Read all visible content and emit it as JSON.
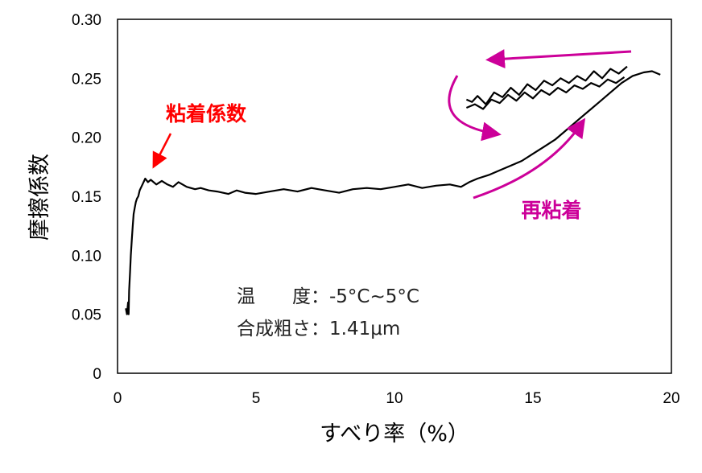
{
  "chart_data": {
    "type": "line",
    "title": "",
    "xlabel": "すべり率（%）",
    "ylabel": "摩擦係数",
    "xlim": [
      0,
      20
    ],
    "ylim": [
      0,
      0.3
    ],
    "x_ticks": [
      "0",
      "5",
      "10",
      "15",
      "20"
    ],
    "y_ticks": [
      "0",
      "0.05",
      "0.10",
      "0.15",
      "0.20",
      "0.25",
      "0.30"
    ],
    "grid": false,
    "legend": "none",
    "series": [
      {
        "color": "#000000",
        "x": [
          0.3,
          0.34,
          0.38,
          0.4,
          0.42,
          0.45,
          0.48,
          0.52,
          0.55,
          0.58,
          0.62,
          0.66,
          0.7,
          0.75,
          0.8,
          0.9,
          1.0,
          1.1,
          1.2,
          1.4,
          1.6,
          1.8,
          2.0,
          2.2,
          2.5,
          2.8,
          3.0,
          3.3,
          3.6,
          4.0,
          4.3,
          4.6,
          5.0,
          5.5,
          6.0,
          6.5,
          7.0,
          7.5,
          8.0,
          8.5,
          9.0,
          9.5,
          10.0,
          10.5,
          11.0,
          11.5,
          12.0,
          12.4,
          12.7,
          13.0,
          13.4,
          13.8,
          14.2,
          14.6,
          15.0,
          15.4,
          15.8,
          16.2,
          16.6,
          17.0,
          17.4,
          17.8,
          18.2,
          18.6,
          19.0,
          19.3,
          19.6
        ],
        "y": [
          0.055,
          0.05,
          0.06,
          0.05,
          0.07,
          0.085,
          0.1,
          0.115,
          0.125,
          0.135,
          0.14,
          0.145,
          0.148,
          0.15,
          0.155,
          0.16,
          0.165,
          0.162,
          0.164,
          0.16,
          0.163,
          0.16,
          0.158,
          0.162,
          0.158,
          0.156,
          0.157,
          0.155,
          0.154,
          0.152,
          0.155,
          0.153,
          0.152,
          0.154,
          0.156,
          0.154,
          0.157,
          0.155,
          0.153,
          0.156,
          0.157,
          0.156,
          0.158,
          0.16,
          0.157,
          0.159,
          0.16,
          0.158,
          0.162,
          0.165,
          0.168,
          0.172,
          0.176,
          0.18,
          0.186,
          0.192,
          0.198,
          0.206,
          0.214,
          0.222,
          0.23,
          0.238,
          0.246,
          0.252,
          0.255,
          0.256,
          0.253
        ]
      },
      {
        "color": "#000000",
        "x": [
          12.6,
          12.8,
          13.0,
          13.3,
          13.6,
          13.9,
          14.2,
          14.5,
          14.8,
          15.1,
          15.4,
          15.7,
          16.0,
          16.3,
          16.6,
          16.9,
          17.2,
          17.5,
          17.8,
          18.1,
          18.4
        ],
        "y": [
          0.232,
          0.23,
          0.235,
          0.228,
          0.238,
          0.234,
          0.242,
          0.236,
          0.245,
          0.24,
          0.248,
          0.244,
          0.25,
          0.246,
          0.252,
          0.248,
          0.256,
          0.25,
          0.258,
          0.254,
          0.26
        ]
      },
      {
        "color": "#000000",
        "x": [
          12.6,
          12.9,
          13.2,
          13.5,
          13.8,
          14.1,
          14.4,
          14.7,
          15.0,
          15.3,
          15.6,
          15.9,
          16.2,
          16.5,
          16.8,
          17.1,
          17.4,
          17.7,
          18.0,
          18.3
        ],
        "y": [
          0.225,
          0.228,
          0.224,
          0.232,
          0.229,
          0.236,
          0.231,
          0.238,
          0.233,
          0.24,
          0.236,
          0.242,
          0.238,
          0.244,
          0.241,
          0.246,
          0.243,
          0.249,
          0.246,
          0.251
        ]
      }
    ],
    "annotations": [
      {
        "text": "粘着係数",
        "color": "#ff0000"
      },
      {
        "text": "再粘着",
        "color": "#cc0099"
      }
    ],
    "condition_lines": [
      "温　　度：-5°C~5°C",
      "合成粗さ：1.41μm"
    ]
  }
}
